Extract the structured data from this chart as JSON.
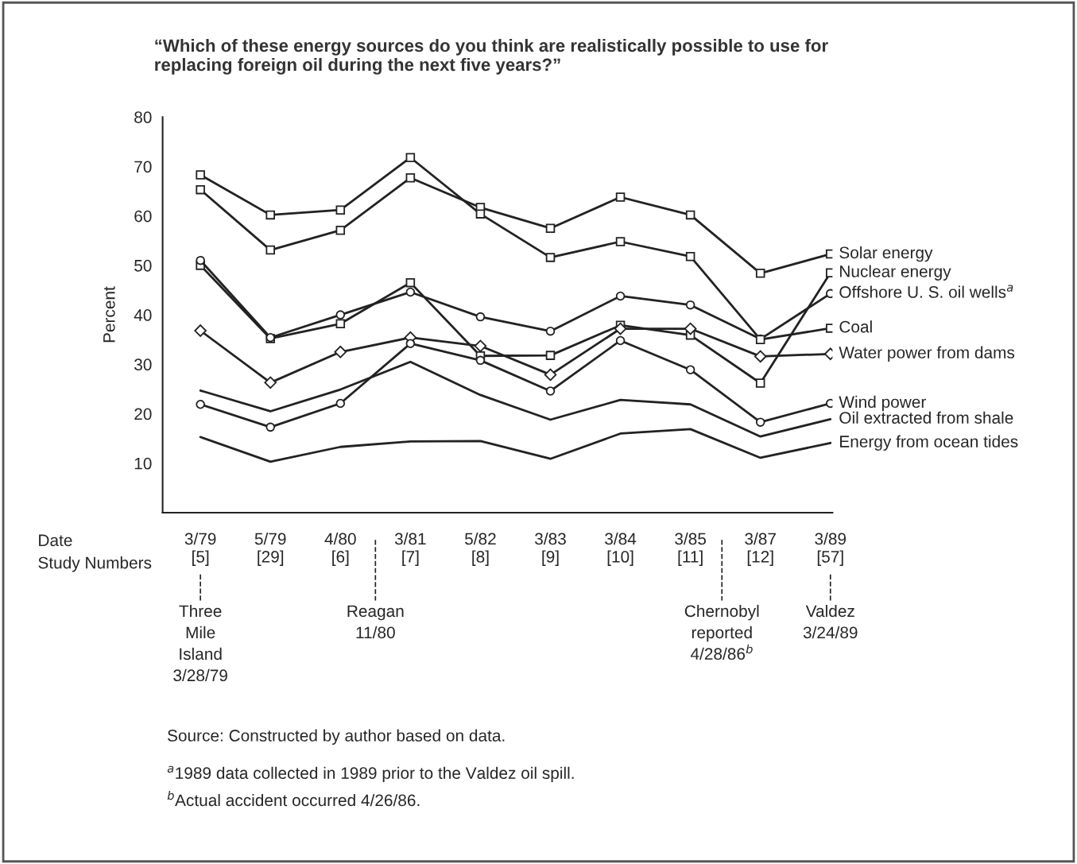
{
  "chart_data": {
    "type": "line",
    "title": "“Which of these energy sources do you think are realistically possible to use for\nreplacing foreign oil during the next five years?”",
    "ylabel": "Percent",
    "categories": [
      "3/79\n[5]",
      "5/79\n[29]",
      "4/80\n[6]",
      "3/81\n[7]",
      "5/82\n[8]",
      "3/83\n[9]",
      "3/84\n[10]",
      "3/85\n[11]",
      "3/87\n[12]",
      "3/89\n[57]"
    ],
    "ylim": [
      0,
      80
    ],
    "yticks": [
      10,
      20,
      30,
      40,
      50,
      60,
      70,
      80
    ],
    "grid": false,
    "legend": false,
    "line_style": "solid",
    "series": [
      {
        "name": "Solar energy",
        "color": "#222222",
        "marker": "square",
        "values": [
          65.3,
          53.1,
          57.1,
          67.7,
          61.7,
          57.5,
          63.8,
          60.2,
          48.4,
          52.3
        ]
      },
      {
        "name": "Nuclear energy",
        "color": "#222222",
        "marker": "square",
        "values": [
          50.0,
          35.2,
          38.2,
          46.5,
          31.7,
          31.8,
          37.9,
          35.9,
          26.2,
          48.5
        ]
      },
      {
        "name": "Offshore U. S. oil wells$^{a}$",
        "color": "#222222",
        "marker": "circle",
        "values": [
          51.0,
          35.4,
          40.0,
          44.6,
          39.6,
          36.7,
          43.8,
          42.0,
          35.1,
          44.3
        ]
      },
      {
        "name": "Coal",
        "color": "#222222",
        "marker": "square",
        "values": [
          68.3,
          60.2,
          61.2,
          71.8,
          60.4,
          51.6,
          54.8,
          51.8,
          35.0,
          37.3
        ]
      },
      {
        "name": "Water power from dams",
        "color": "#222222",
        "marker": "diamond",
        "values": [
          36.8,
          26.3,
          32.5,
          35.4,
          33.7,
          27.9,
          37.2,
          37.2,
          31.6,
          32.1
        ]
      },
      {
        "name": "Wind power",
        "color": "#222222",
        "marker": "circle",
        "values": [
          21.9,
          17.3,
          22.1,
          34.2,
          30.8,
          24.6,
          34.8,
          28.9,
          18.3,
          22.1
        ]
      },
      {
        "name": "Oil extracted from shale",
        "color": "#222222",
        "marker": "none",
        "values": [
          24.7,
          20.5,
          24.9,
          30.5,
          23.8,
          18.8,
          22.8,
          21.9,
          15.4,
          18.9
        ]
      },
      {
        "name": "Energy from ocean tides",
        "color": "#222222",
        "marker": "none",
        "values": [
          15.3,
          10.3,
          13.3,
          14.4,
          14.5,
          10.9,
          16.0,
          16.9,
          11.1,
          14.1
        ]
      }
    ],
    "annotations": [
      "Date",
      "Study Numbers",
      "Three\nMile\nIsland\n3/28/79",
      "Reagan\n11/80",
      "Chernobyl\nreported\n4/28/86$^{b}$",
      "Valdez\n3/24/89",
      "Source: Constructed by author based on data.",
      "$^{a}$1989 data collected in 1989 prior to the Valdez oil spill.",
      "$^{b}$Actual accident occurred 4/26/86."
    ]
  }
}
